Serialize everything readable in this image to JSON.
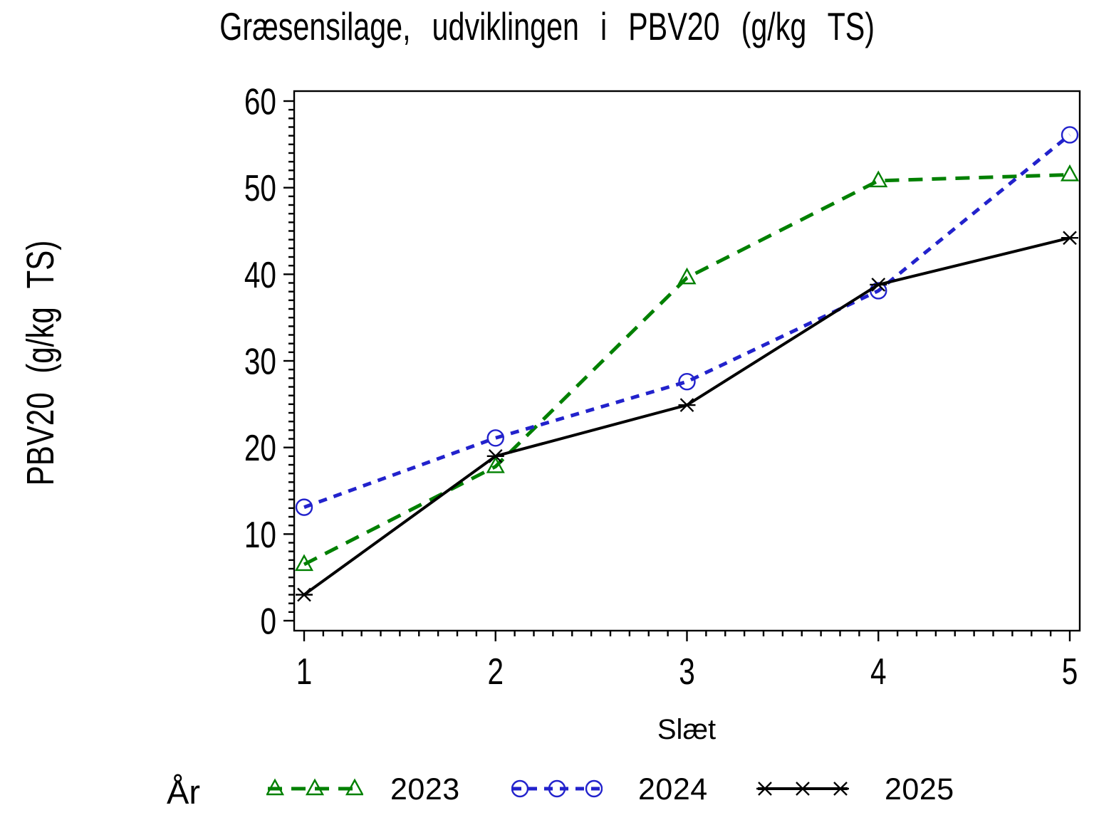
{
  "page": {
    "background": "#ffffff"
  },
  "chart_data": {
    "type": "line",
    "title": "Græsensilage, udviklingen i PBV20 (g/kg TS)",
    "xlabel": "Slæt",
    "ylabel": "PBV20 (g/kg TS)",
    "categories": [
      1,
      2,
      3,
      4,
      5
    ],
    "xlim": [
      1,
      5
    ],
    "x_minor_step": 0.1,
    "ylim": [
      0,
      60
    ],
    "yticks": [
      0,
      10,
      20,
      30,
      40,
      50,
      60
    ],
    "y_minor_step": 1,
    "grid": false,
    "frame": true,
    "legend_position": "bottom",
    "legend_title": "År",
    "series": [
      {
        "name": "2023",
        "color": "#008000",
        "line": "dashed",
        "dash": "20 13",
        "marker": "triangle",
        "values": [
          6.5,
          17.8,
          39.6,
          50.8,
          51.5
        ]
      },
      {
        "name": "2024",
        "color": "#2222cc",
        "line": "dashed",
        "dash": "12 10",
        "marker": "circle",
        "values": [
          13.1,
          21.1,
          27.6,
          38.1,
          56.1
        ]
      },
      {
        "name": "2025",
        "color": "#000000",
        "line": "solid",
        "dash": "",
        "marker": "asterisk",
        "values": [
          3.0,
          19.0,
          24.9,
          38.8,
          44.2
        ]
      }
    ],
    "axis_color": "#000000",
    "tick_label_color": "#000000"
  }
}
